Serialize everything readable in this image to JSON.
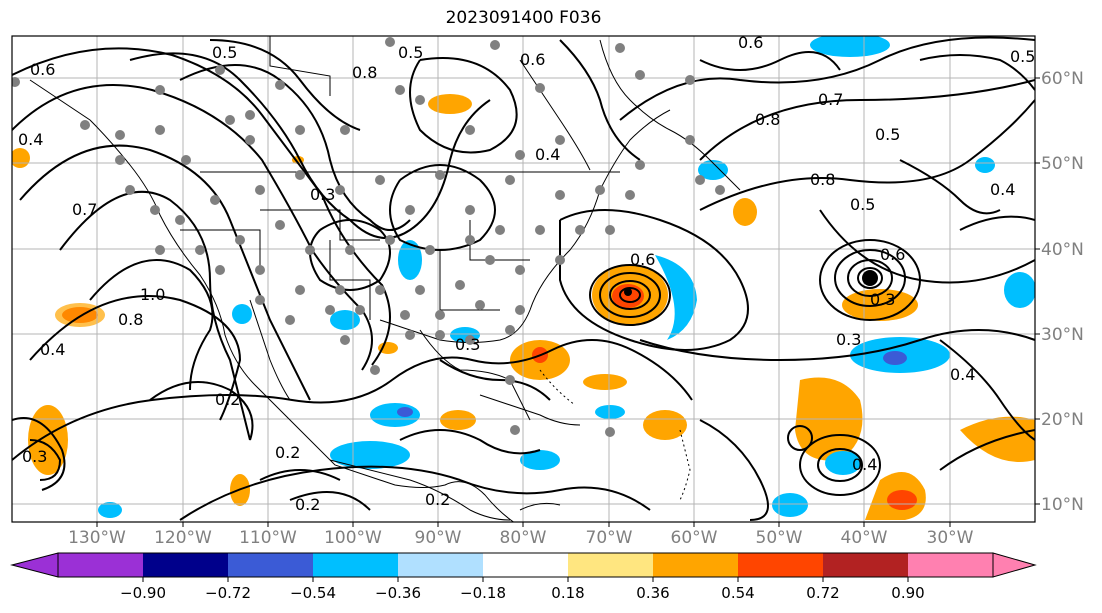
{
  "title": "2023091400 F036",
  "longitude_labels": [
    "130°W",
    "120°W",
    "110°W",
    "100°W",
    "90°W",
    "80°W",
    "70°W",
    "60°W",
    "50°W",
    "40°W",
    "30°W"
  ],
  "latitude_labels": [
    "60°N",
    "50°N",
    "40°N",
    "30°N",
    "20°N",
    "10°N"
  ],
  "contour_labels": [
    "0.5",
    "0.6",
    "0.8",
    "0.7",
    "0.4",
    "1.0",
    "0.3",
    "0.2",
    "0.5",
    "0.6",
    "0.8",
    "0.6",
    "0.4",
    "0.5",
    "0.7",
    "0.8",
    "0.5",
    "0.6",
    "0.3",
    "0.4",
    "0.6",
    "0.3",
    "0.2",
    "0.2",
    "0.2",
    "0.4",
    "0.3",
    "0.4",
    "0.8",
    "0.3",
    "0.5",
    "0.4"
  ],
  "colorbar": {
    "tick_labels": [
      "−0.90",
      "−0.72",
      "−0.54",
      "−0.36",
      "−0.18",
      "0.18",
      "0.36",
      "0.54",
      "0.72",
      "0.90"
    ],
    "colors": [
      "#9b30d6",
      "#00008b",
      "#3b5bd6",
      "#00bfff",
      "#b0e0ff",
      "#ffffff",
      "#ffe680",
      "#ffa500",
      "#ff4500",
      "#b22222",
      "#ff80b0"
    ]
  },
  "colors": {
    "land_line": "#000000",
    "grid": "#b4b4b4",
    "station_dot": "#808080",
    "axis_label": "#808080"
  }
}
